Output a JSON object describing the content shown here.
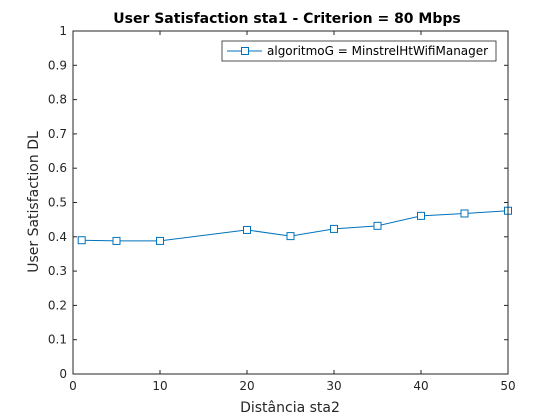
{
  "chart_data": {
    "type": "line",
    "title": "User Satisfaction sta1 -  Criterion =  80 Mbps",
    "xlabel": "Distância sta2",
    "ylabel": "User Satisfaction DL",
    "xlim": [
      0,
      50
    ],
    "ylim": [
      0,
      1
    ],
    "xticks": [
      0,
      10,
      20,
      30,
      40,
      50
    ],
    "yticks": [
      0,
      0.1,
      0.2,
      0.3,
      0.4,
      0.5,
      0.6,
      0.7,
      0.8,
      0.9,
      1
    ],
    "xtick_labels": [
      "0",
      "10",
      "20",
      "30",
      "40",
      "50"
    ],
    "ytick_labels": [
      "0",
      "0.1",
      "0.2",
      "0.3",
      "0.4",
      "0.5",
      "0.6",
      "0.7",
      "0.8",
      "0.9",
      "1"
    ],
    "grid": false,
    "legend_position": "top-right",
    "series": [
      {
        "name": "algoritmoG = MinstrelHtWifiManager",
        "color": "#0072BD",
        "marker": "square",
        "x": [
          1,
          5,
          10,
          20,
          25,
          30,
          35,
          40,
          45,
          50
        ],
        "y": [
          0.39,
          0.388,
          0.388,
          0.42,
          0.402,
          0.423,
          0.432,
          0.461,
          0.468,
          0.476
        ]
      }
    ]
  }
}
